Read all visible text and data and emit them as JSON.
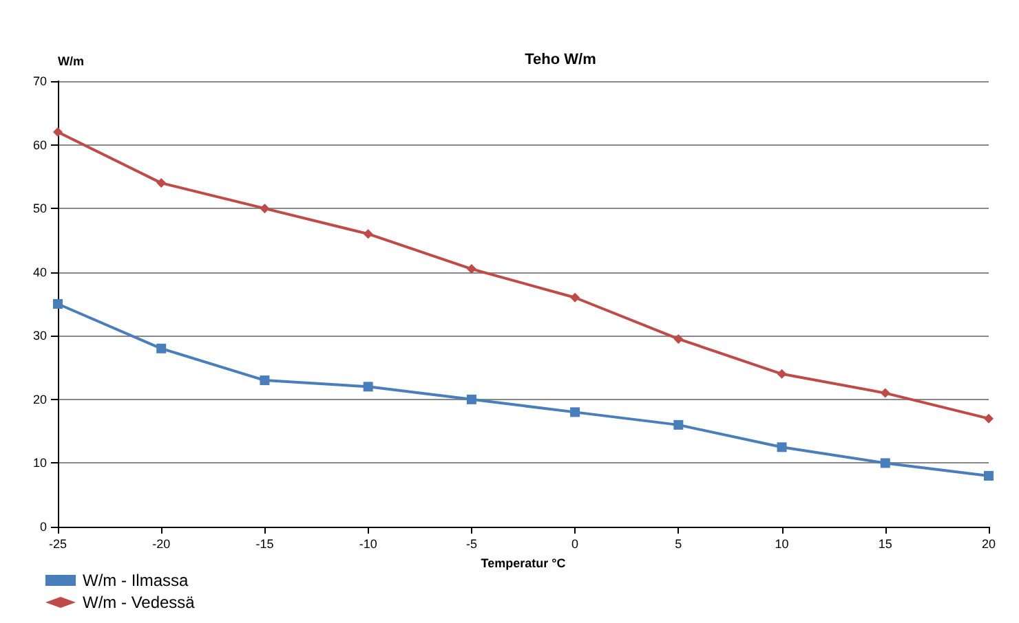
{
  "chart_data": {
    "type": "line",
    "title": "Teho W/m",
    "xlabel": "Temperatur °C",
    "ylabel": "W/m",
    "x": [
      -25,
      -20,
      -15,
      -10,
      -5,
      0,
      5,
      10,
      15,
      20
    ],
    "series": [
      {
        "name": "W/m - Ilmassa",
        "color": "#4a7ebb",
        "marker": "square",
        "values": [
          35,
          28,
          23,
          22,
          20,
          18,
          16,
          12.5,
          10,
          8
        ]
      },
      {
        "name": "W/m - Vedessä",
        "color": "#be4b48",
        "marker": "diamond",
        "values": [
          62,
          54,
          50,
          46,
          40.5,
          36,
          29.5,
          24,
          21,
          17
        ]
      }
    ],
    "xlim": [
      -25,
      20
    ],
    "xticks": [
      -25,
      -20,
      -15,
      -10,
      -5,
      0,
      5,
      10,
      15,
      20
    ],
    "ylim": [
      0,
      70
    ],
    "yticks": [
      0,
      10,
      20,
      30,
      40,
      50,
      60,
      70
    ],
    "grid": "y",
    "legend": "bottom left",
    "line_style": "solid"
  }
}
